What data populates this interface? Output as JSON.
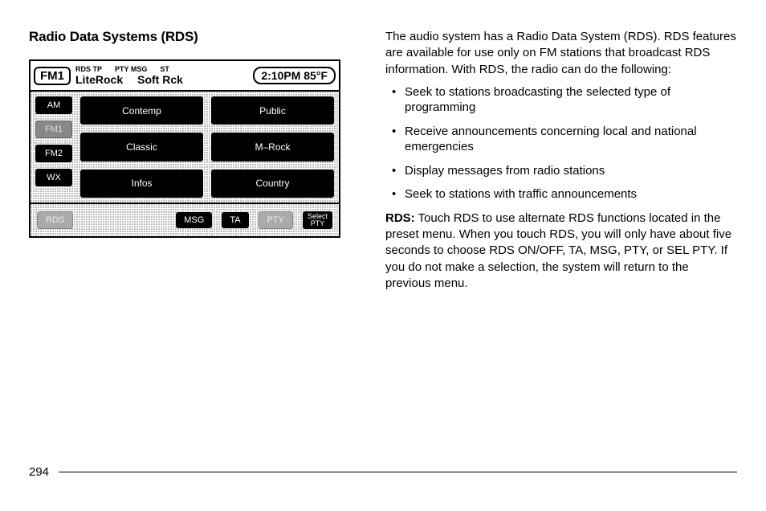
{
  "heading": "Radio Data Systems (RDS)",
  "radio": {
    "band": "FM1",
    "indicators": [
      "RDS TP",
      "PTY MSG",
      "ST"
    ],
    "station_labels": [
      "LiteRock",
      "Soft Rck"
    ],
    "clock": "2:10PM 85°F",
    "side_buttons": [
      {
        "label": "AM",
        "active": false
      },
      {
        "label": "FM1",
        "active": true
      },
      {
        "label": "FM2",
        "active": false
      },
      {
        "label": "WX",
        "active": false
      }
    ],
    "genres": [
      "Contemp",
      "Public",
      "Classic",
      "M–Rock",
      "Infos",
      "Country"
    ],
    "footer": {
      "rds": "RDS",
      "msg": "MSG",
      "ta": "TA",
      "pty": "PTY",
      "select_pty_l1": "Select",
      "select_pty_l2": "PTY"
    }
  },
  "intro": "The audio system has a Radio Data System (RDS). RDS features are available for use only on FM stations that broadcast RDS information. With RDS, the radio can do the following:",
  "bullets": [
    "Seek to stations broadcasting the selected type of programming",
    "Receive announcements concerning local and national emergencies",
    "Display messages from radio stations",
    "Seek to stations with traffic announcements"
  ],
  "rds_label": "RDS:",
  "rds_text": "Touch RDS to use alternate RDS functions located in the preset menu. When you touch RDS, you will only have about five seconds to choose RDS ON/OFF, TA, MSG, PTY, or SEL PTY. If you do not make a selection, the system will return to the previous menu.",
  "page_number": "294"
}
